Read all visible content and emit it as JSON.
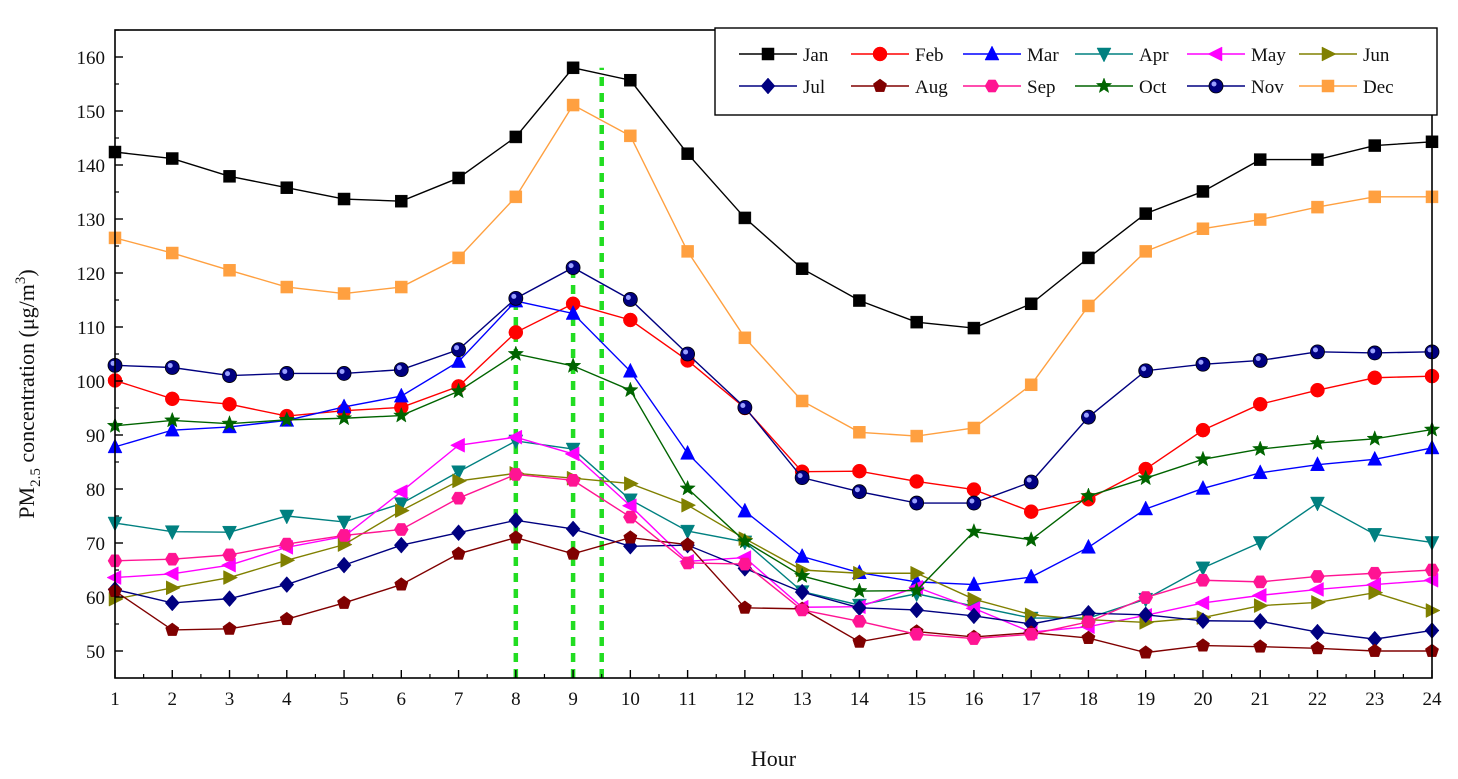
{
  "chart_data": {
    "type": "line",
    "title": "",
    "xlabel": "Hour",
    "ylabel": "PM2.5 concentration (μg/m3)",
    "ylabel_parts": {
      "main": "PM",
      "sub": "2.5",
      "rest": " concentration (μg/m",
      "sup": "3",
      "close": ")"
    },
    "x": [
      1,
      2,
      3,
      4,
      5,
      6,
      7,
      8,
      9,
      10,
      11,
      12,
      13,
      14,
      15,
      16,
      17,
      18,
      19,
      20,
      21,
      22,
      23,
      24
    ],
    "xlim": [
      1,
      24
    ],
    "ylim": [
      45,
      165
    ],
    "yticks": [
      50,
      60,
      70,
      80,
      90,
      100,
      110,
      120,
      130,
      140,
      150,
      160
    ],
    "legend_position": "top-right",
    "reference_lines": [
      8,
      9,
      9.5
    ],
    "reference_line_color": "#22dd22",
    "series": [
      {
        "name": "Jan",
        "color": "#000000",
        "marker": "square",
        "values": [
          142.4,
          141.2,
          137.9,
          135.8,
          133.7,
          133.3,
          137.6,
          145.2,
          158.0,
          155.7,
          142.1,
          130.2,
          120.8,
          114.9,
          110.9,
          109.8,
          114.3,
          122.8,
          131.0,
          135.1,
          141.0,
          141.0,
          143.6,
          144.3
        ]
      },
      {
        "name": "Feb",
        "color": "#ff0000",
        "marker": "circle",
        "values": [
          100.1,
          96.7,
          95.7,
          93.5,
          94.5,
          95.1,
          99.0,
          109.0,
          114.3,
          111.3,
          103.8,
          95.0,
          83.2,
          83.3,
          81.4,
          79.9,
          75.8,
          78.1,
          83.7,
          90.9,
          95.7,
          98.3,
          100.6,
          100.9
        ]
      },
      {
        "name": "Mar",
        "color": "#0000ff",
        "marker": "triangle-up",
        "values": [
          87.8,
          90.9,
          91.5,
          92.7,
          95.2,
          97.2,
          103.6,
          114.8,
          112.5,
          101.8,
          86.6,
          75.9,
          67.5,
          64.5,
          62.8,
          62.3,
          63.7,
          69.2,
          76.3,
          80.1,
          83.0,
          84.5,
          85.5,
          87.6
        ]
      },
      {
        "name": "Apr",
        "color": "#008080",
        "marker": "triangle-down",
        "values": [
          73.7,
          72.1,
          72.0,
          75.0,
          73.9,
          77.3,
          83.2,
          88.9,
          87.4,
          78.0,
          72.2,
          70.2,
          61.0,
          58.5,
          60.6,
          58.3,
          56.1,
          56.1,
          59.6,
          65.4,
          70.1,
          77.4,
          71.6,
          70.1
        ]
      },
      {
        "name": "May",
        "color": "#ff00ff",
        "marker": "triangle-left",
        "values": [
          63.6,
          64.3,
          65.9,
          69.2,
          71.2,
          79.5,
          88.1,
          89.6,
          86.5,
          76.9,
          66.6,
          67.3,
          58.1,
          58.2,
          61.8,
          57.9,
          53.5,
          54.5,
          56.6,
          58.9,
          60.3,
          61.4,
          62.3,
          63.1
        ]
      },
      {
        "name": "Jun",
        "color": "#808000",
        "marker": "triangle-right",
        "values": [
          59.6,
          61.7,
          63.6,
          66.8,
          69.7,
          76.0,
          81.5,
          82.9,
          82.0,
          81.0,
          77.0,
          70.8,
          65.0,
          64.4,
          64.4,
          59.6,
          56.7,
          55.8,
          55.3,
          56.2,
          58.4,
          59.0,
          60.8,
          57.5
        ]
      },
      {
        "name": "Jul",
        "color": "#000080",
        "marker": "diamond",
        "values": [
          61.4,
          58.9,
          59.7,
          62.3,
          65.9,
          69.6,
          71.9,
          74.2,
          72.6,
          69.4,
          69.6,
          65.3,
          60.9,
          58.0,
          57.6,
          56.5,
          55.0,
          57.0,
          56.7,
          55.6,
          55.5,
          53.5,
          52.2,
          53.8
        ]
      },
      {
        "name": "Aug",
        "color": "#800000",
        "marker": "pentagon",
        "values": [
          61.1,
          53.9,
          54.1,
          55.9,
          58.9,
          62.3,
          68.0,
          71.0,
          68.0,
          71.0,
          69.7,
          58.0,
          57.8,
          51.7,
          53.6,
          52.6,
          53.4,
          52.4,
          49.7,
          51.0,
          50.8,
          50.5,
          50.0,
          50.0
        ]
      },
      {
        "name": "Sep",
        "color": "#ff1493",
        "marker": "hexagon",
        "values": [
          66.7,
          67.0,
          67.8,
          69.8,
          71.4,
          72.5,
          78.3,
          82.7,
          81.6,
          74.8,
          66.3,
          66.1,
          57.6,
          55.5,
          53.1,
          52.3,
          53.1,
          55.4,
          59.9,
          63.1,
          62.8,
          63.8,
          64.4,
          65.0
        ]
      },
      {
        "name": "Oct",
        "color": "#006400",
        "marker": "star",
        "values": [
          91.7,
          92.7,
          92.1,
          92.8,
          93.1,
          93.6,
          98.1,
          105.0,
          102.8,
          98.3,
          80.1,
          70.3,
          63.9,
          61.1,
          61.2,
          72.1,
          70.6,
          78.7,
          82.0,
          85.5,
          87.4,
          88.5,
          89.3,
          91.0
        ]
      },
      {
        "name": "Nov",
        "color": "#000080",
        "marker": "sphere",
        "values": [
          102.9,
          102.5,
          101.0,
          101.4,
          101.4,
          102.1,
          105.8,
          115.3,
          121.0,
          115.1,
          105.0,
          95.1,
          82.1,
          79.5,
          77.4,
          77.4,
          81.3,
          93.3,
          101.9,
          103.1,
          103.8,
          105.4,
          105.2,
          105.4
        ]
      },
      {
        "name": "Dec",
        "color": "#ffa040",
        "marker": "square",
        "values": [
          126.5,
          123.7,
          120.5,
          117.4,
          116.2,
          117.4,
          122.8,
          134.1,
          151.1,
          145.4,
          124.0,
          108.0,
          96.3,
          90.5,
          89.8,
          91.3,
          99.3,
          113.9,
          124.0,
          128.2,
          129.9,
          132.2,
          134.1,
          134.1
        ]
      }
    ]
  }
}
